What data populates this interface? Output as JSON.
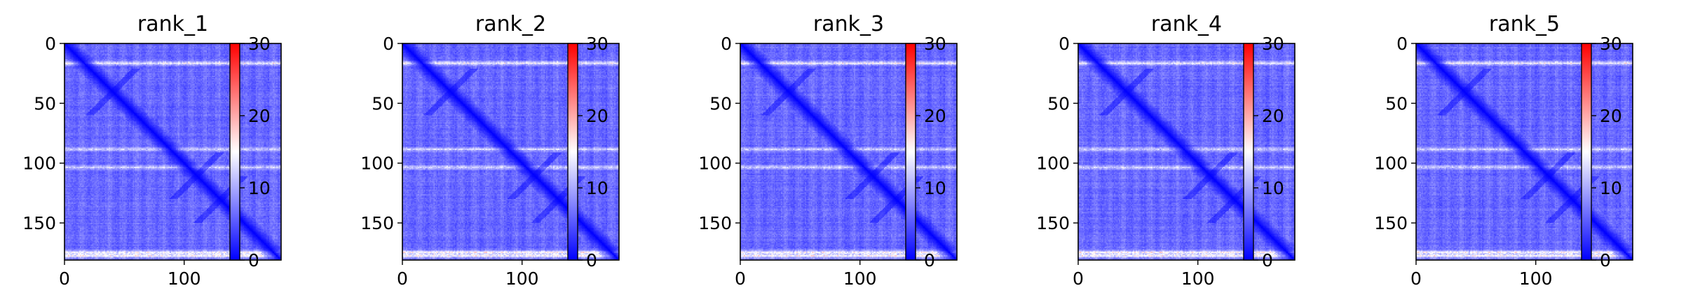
{
  "chart_data": [
    {
      "type": "heatmap",
      "title": "rank_1",
      "n": 181,
      "xlim": [
        0,
        181
      ],
      "ylim": [
        181,
        0
      ],
      "xticks": [
        0,
        100
      ],
      "yticks": [
        0,
        50,
        100,
        150
      ],
      "colorbar": {
        "min": 0,
        "max": 30,
        "ticks": [
          0,
          10,
          20,
          30
        ],
        "colormap": [
          "#0000ff",
          "#ffffff",
          "#ff0000"
        ]
      },
      "bright_rows": [
        16,
        88,
        103,
        174,
        177
      ],
      "diagonal_value": 0,
      "background_value": 4
    },
    {
      "type": "heatmap",
      "title": "rank_2",
      "n": 181,
      "xlim": [
        0,
        181
      ],
      "ylim": [
        181,
        0
      ],
      "xticks": [
        0,
        100
      ],
      "yticks": [
        0,
        50,
        100,
        150
      ],
      "colorbar": {
        "min": 0,
        "max": 30,
        "ticks": [
          0,
          10,
          20,
          30
        ],
        "colormap": [
          "#0000ff",
          "#ffffff",
          "#ff0000"
        ]
      },
      "bright_rows": [
        16,
        88,
        103,
        174,
        177
      ],
      "diagonal_value": 0,
      "background_value": 4
    },
    {
      "type": "heatmap",
      "title": "rank_3",
      "n": 181,
      "xlim": [
        0,
        181
      ],
      "ylim": [
        181,
        0
      ],
      "xticks": [
        0,
        100
      ],
      "yticks": [
        0,
        50,
        100,
        150
      ],
      "colorbar": {
        "min": 0,
        "max": 30,
        "ticks": [
          0,
          10,
          20,
          30
        ],
        "colormap": [
          "#0000ff",
          "#ffffff",
          "#ff0000"
        ]
      },
      "bright_rows": [
        16,
        88,
        103,
        174,
        177
      ],
      "diagonal_value": 0,
      "background_value": 4
    },
    {
      "type": "heatmap",
      "title": "rank_4",
      "n": 181,
      "xlim": [
        0,
        181
      ],
      "ylim": [
        181,
        0
      ],
      "xticks": [
        0,
        100
      ],
      "yticks": [
        0,
        50,
        100,
        150
      ],
      "colorbar": {
        "min": 0,
        "max": 30,
        "ticks": [
          0,
          10,
          20,
          30
        ],
        "colormap": [
          "#0000ff",
          "#ffffff",
          "#ff0000"
        ]
      },
      "bright_rows": [
        16,
        88,
        103,
        174,
        177
      ],
      "diagonal_value": 0,
      "background_value": 4
    },
    {
      "type": "heatmap",
      "title": "rank_5",
      "n": 181,
      "xlim": [
        0,
        181
      ],
      "ylim": [
        181,
        0
      ],
      "xticks": [
        0,
        100
      ],
      "yticks": [
        0,
        50,
        100,
        150
      ],
      "colorbar": {
        "min": 0,
        "max": 30,
        "ticks": [
          0,
          10,
          20,
          30
        ],
        "colormap": [
          "#0000ff",
          "#ffffff",
          "#ff0000"
        ]
      },
      "bright_rows": [
        16,
        88,
        103,
        174,
        177
      ],
      "diagonal_value": 0,
      "background_value": 4
    }
  ]
}
